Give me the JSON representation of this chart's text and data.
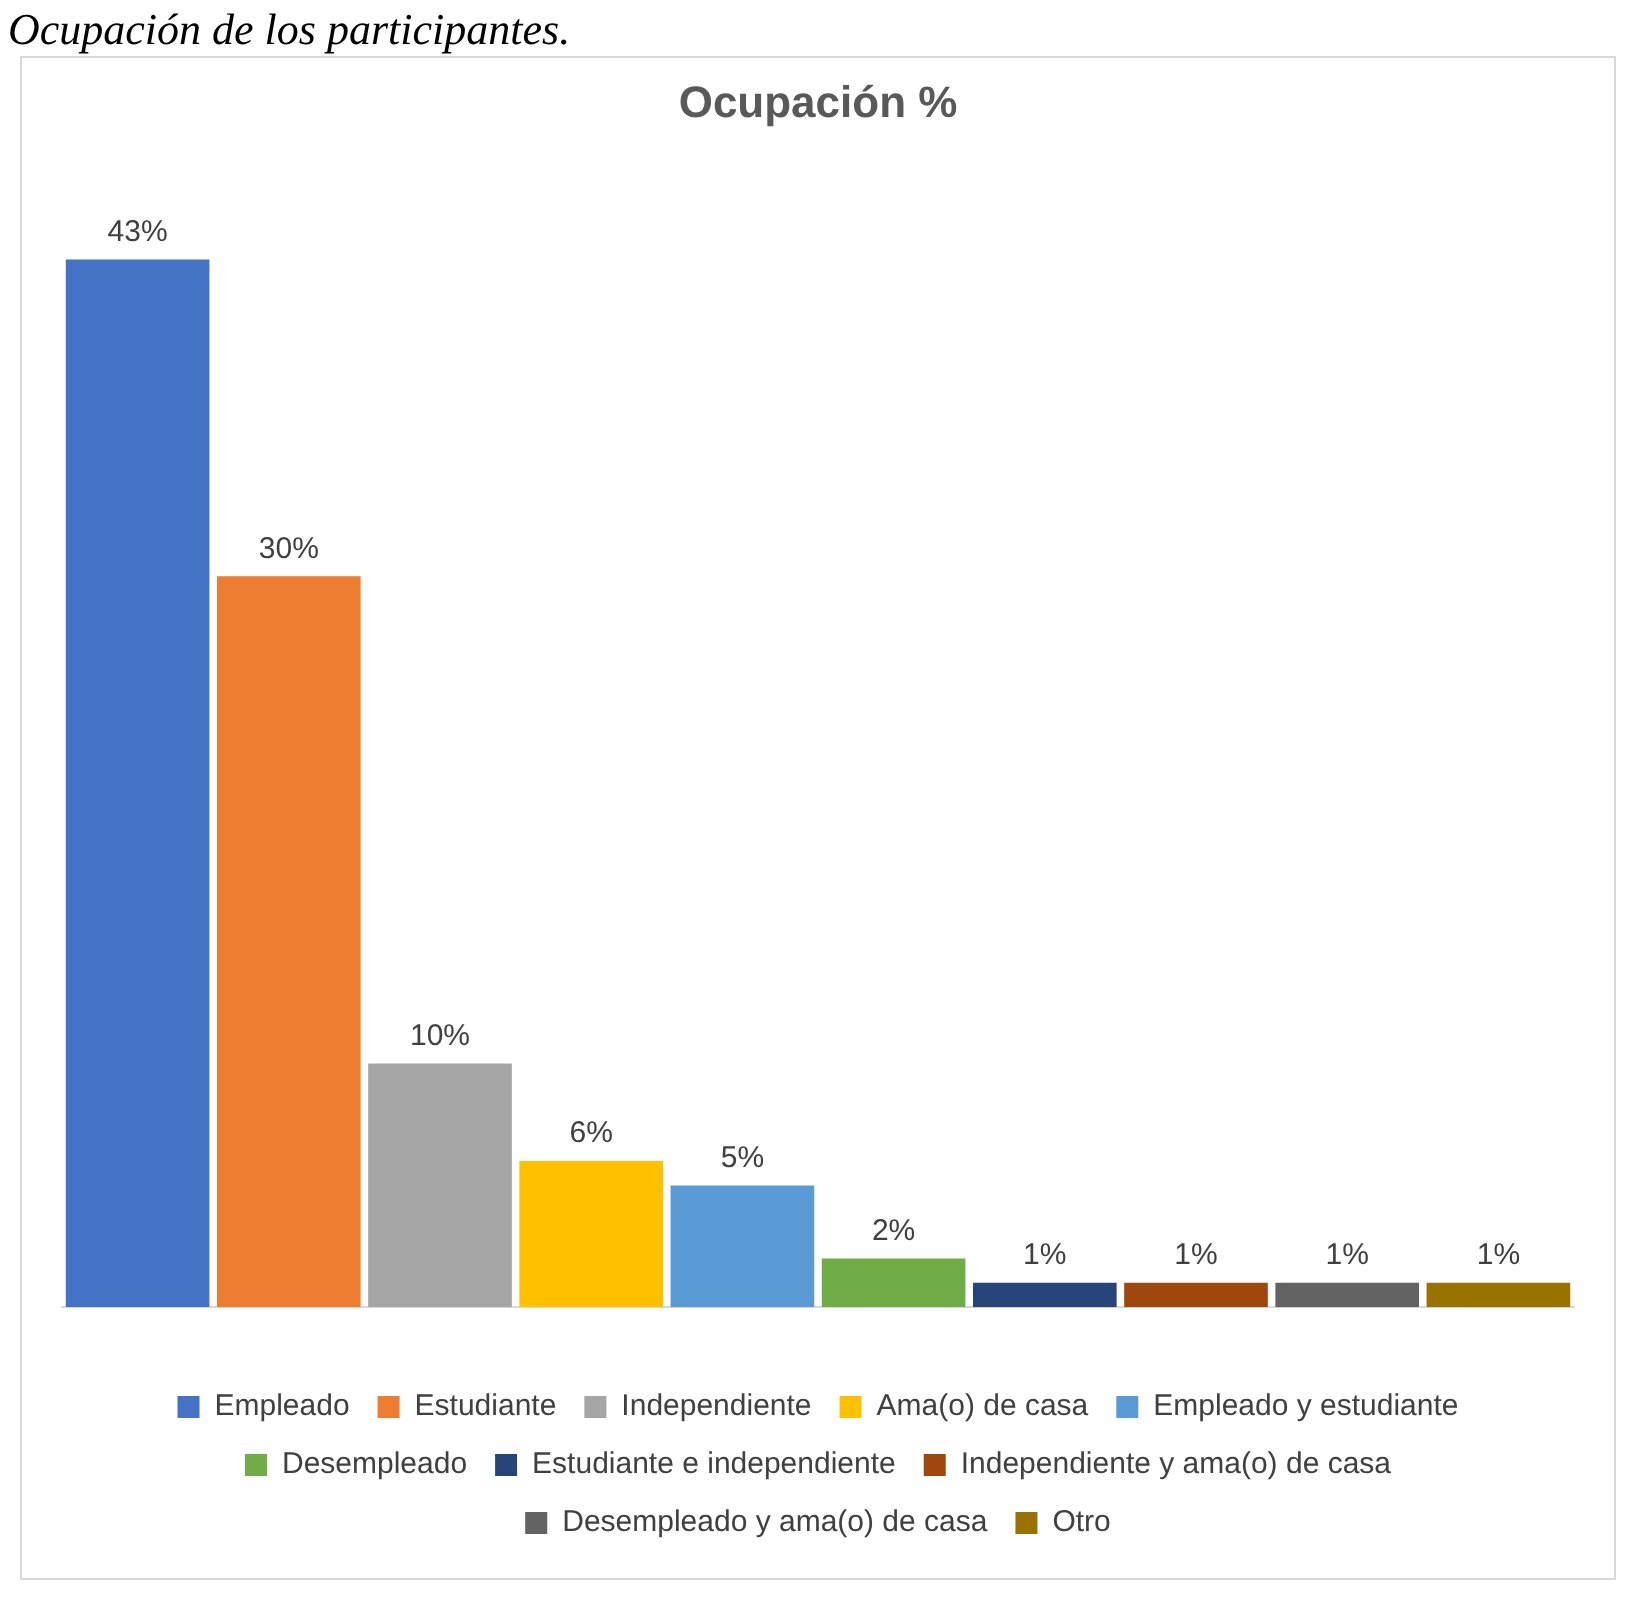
{
  "chart_data": {
    "type": "bar",
    "title": "Ocupación %",
    "annotations": [
      "Ocupación de los participantes."
    ],
    "categories": [
      null,
      null,
      null,
      null,
      null,
      null,
      null,
      null,
      null,
      null
    ],
    "stacked": true,
    "legend": "bottom",
    "series": [
      {
        "name": "Empleado",
        "color": "#4472c4",
        "values": [
          43,
          null,
          null,
          null,
          null,
          null,
          null,
          null,
          null,
          null
        ],
        "value_labels": [
          "43%",
          null,
          null,
          null,
          null,
          null,
          null,
          null,
          null,
          null
        ]
      },
      {
        "name": "Estudiante",
        "color": "#ed7d31",
        "values": [
          null,
          30,
          null,
          null,
          null,
          null,
          null,
          null,
          null,
          null
        ],
        "value_labels": [
          null,
          "30%",
          null,
          null,
          null,
          null,
          null,
          null,
          null,
          null
        ]
      },
      {
        "name": "Independiente",
        "color": "#a5a5a5",
        "values": [
          null,
          null,
          10,
          null,
          null,
          null,
          null,
          null,
          null,
          null
        ],
        "value_labels": [
          null,
          null,
          "10%",
          null,
          null,
          null,
          null,
          null,
          null,
          null
        ]
      },
      {
        "name": "Ama(o) de casa",
        "color": "#ffc000",
        "values": [
          null,
          null,
          null,
          6,
          null,
          null,
          null,
          null,
          null,
          null
        ],
        "value_labels": [
          null,
          null,
          null,
          "6%",
          null,
          null,
          null,
          null,
          null,
          null
        ]
      },
      {
        "name": "Empleado y estudiante",
        "color": "#5b9bd5",
        "values": [
          null,
          null,
          null,
          null,
          5,
          null,
          null,
          null,
          null,
          null
        ],
        "value_labels": [
          null,
          null,
          null,
          null,
          "5%",
          null,
          null,
          null,
          null,
          null
        ]
      },
      {
        "name": "Desempleado",
        "color": "#70ad47",
        "values": [
          null,
          null,
          null,
          null,
          null,
          2,
          null,
          null,
          null,
          null
        ],
        "value_labels": [
          null,
          null,
          null,
          null,
          null,
          "2%",
          null,
          null,
          null,
          null
        ]
      },
      {
        "name": "Estudiante e independiente",
        "color": "#264478",
        "values": [
          null,
          null,
          null,
          null,
          null,
          null,
          1,
          null,
          null,
          null
        ],
        "value_labels": [
          null,
          null,
          null,
          null,
          null,
          null,
          "1%",
          null,
          null,
          null
        ]
      },
      {
        "name": "Independiente y ama(o) de casa",
        "color": "#9e480e",
        "values": [
          null,
          null,
          null,
          null,
          null,
          null,
          null,
          1,
          null,
          null
        ],
        "value_labels": [
          null,
          null,
          null,
          null,
          null,
          null,
          null,
          "1%",
          null,
          null
        ]
      },
      {
        "name": "Desempleado y ama(o) de casa",
        "color": "#636363",
        "values": [
          null,
          null,
          null,
          null,
          null,
          null,
          null,
          null,
          1,
          null
        ],
        "value_labels": [
          null,
          null,
          null,
          null,
          null,
          null,
          null,
          null,
          "1%",
          null
        ]
      },
      {
        "name": "Otro",
        "color": "#997300",
        "values": [
          null,
          null,
          null,
          null,
          null,
          null,
          null,
          null,
          null,
          1
        ],
        "value_labels": [
          null,
          null,
          null,
          null,
          null,
          null,
          null,
          null,
          null,
          "1%"
        ]
      }
    ]
  }
}
